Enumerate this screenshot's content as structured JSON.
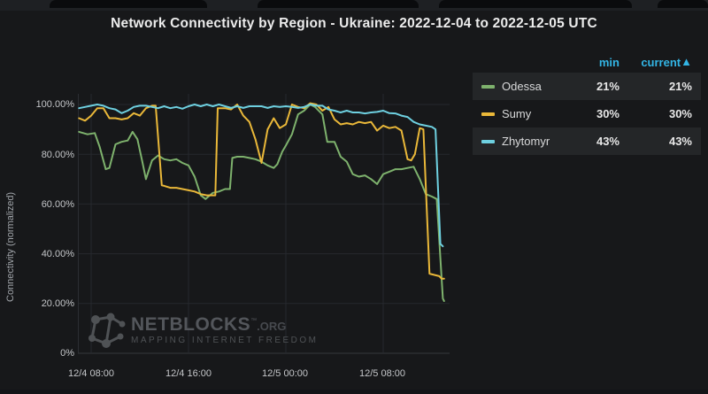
{
  "title": "Network Connectivity by Region - Ukraine: 2022-12-04 to 2022-12-05 UTC",
  "y_axis": {
    "label": "Connectivity (normalized)",
    "ticks": [
      "100.00%",
      "80.00%",
      "60.00%",
      "40.00%",
      "20.00%",
      "0%"
    ]
  },
  "x_axis": {
    "tick_labels": [
      "12/4 08:00",
      "12/4 16:00",
      "12/5 00:00",
      "12/5 08:00"
    ],
    "tick_hours": [
      1,
      9,
      17,
      25
    ]
  },
  "legend": {
    "header": {
      "min": "min",
      "current": "current",
      "sort_arrow": "▲"
    },
    "rows": [
      {
        "name": "Odessa",
        "color": "#7EB26D",
        "min": "21%",
        "current": "21%"
      },
      {
        "name": "Sumy",
        "color": "#EAB839",
        "min": "30%",
        "current": "30%"
      },
      {
        "name": "Zhytomyr",
        "color": "#6ED0E0",
        "min": "43%",
        "current": "43%"
      }
    ]
  },
  "watermark": {
    "brand": "NETBLOCKS",
    "tm": "™",
    "org": ".ORG",
    "tagline": "MAPPING INTERNET FREEDOM"
  },
  "chart_data": {
    "type": "line",
    "title": "Network Connectivity by Region - Ukraine: 2022-12-04 to 2022-12-05 UTC",
    "ylabel": "Connectivity (normalized)",
    "ylim": [
      0,
      100
    ],
    "grid": true,
    "legend_position": "right-table",
    "x_unit": "hours since 2022-12-04 07:00 UTC",
    "x_ticks": [
      {
        "label": "12/4 08:00",
        "t": 1
      },
      {
        "label": "12/4 16:00",
        "t": 9
      },
      {
        "label": "12/5 00:00",
        "t": 17
      },
      {
        "label": "12/5 08:00",
        "t": 25
      }
    ],
    "series": [
      {
        "name": "Odessa",
        "color": "#7EB26D",
        "min_pct": 21,
        "current_pct": 21,
        "points": [
          [
            0,
            89
          ],
          [
            0.7,
            88
          ],
          [
            1.3,
            88.5
          ],
          [
            1.7,
            83
          ],
          [
            2.2,
            74
          ],
          [
            2.5,
            74.5
          ],
          [
            3,
            84
          ],
          [
            3.5,
            85
          ],
          [
            4,
            85.5
          ],
          [
            4.4,
            89
          ],
          [
            4.8,
            86
          ],
          [
            5.2,
            77
          ],
          [
            5.5,
            70
          ],
          [
            6,
            77.5
          ],
          [
            6.5,
            79.5
          ],
          [
            7,
            78
          ],
          [
            7.5,
            77.5
          ],
          [
            8,
            78
          ],
          [
            8.5,
            76.5
          ],
          [
            9,
            75.5
          ],
          [
            9.5,
            71
          ],
          [
            10,
            63.5
          ],
          [
            10.4,
            62
          ],
          [
            11,
            64.5
          ],
          [
            11.5,
            65
          ],
          [
            12,
            66
          ],
          [
            12.4,
            66
          ],
          [
            12.6,
            78.5
          ],
          [
            13,
            79
          ],
          [
            13.5,
            79
          ],
          [
            14,
            78.5
          ],
          [
            14.5,
            78
          ],
          [
            15,
            77
          ],
          [
            15.5,
            75.5
          ],
          [
            16,
            74.5
          ],
          [
            16.3,
            76
          ],
          [
            16.7,
            81
          ],
          [
            17,
            83.5
          ],
          [
            17.5,
            88
          ],
          [
            18,
            96
          ],
          [
            18.5,
            97.5
          ],
          [
            19,
            100
          ],
          [
            19.4,
            99
          ],
          [
            20,
            96
          ],
          [
            20.4,
            85
          ],
          [
            21,
            85
          ],
          [
            21.5,
            79
          ],
          [
            22,
            77
          ],
          [
            22.5,
            72
          ],
          [
            23,
            71
          ],
          [
            23.5,
            71.5
          ],
          [
            24,
            70
          ],
          [
            24.5,
            68
          ],
          [
            25,
            72
          ],
          [
            25.5,
            73
          ],
          [
            26,
            74
          ],
          [
            26.5,
            74
          ],
          [
            27,
            74.5
          ],
          [
            27.5,
            75
          ],
          [
            28,
            70
          ],
          [
            28.5,
            64
          ],
          [
            29,
            63
          ],
          [
            29.4,
            62
          ],
          [
            29.9,
            22
          ],
          [
            30,
            21
          ]
        ]
      },
      {
        "name": "Sumy",
        "color": "#EAB839",
        "min_pct": 30,
        "current_pct": 30,
        "points": [
          [
            0,
            94.5
          ],
          [
            0.5,
            93.5
          ],
          [
            1,
            95.5
          ],
          [
            1.5,
            98.5
          ],
          [
            2,
            98.5
          ],
          [
            2.5,
            94.5
          ],
          [
            3,
            94.5
          ],
          [
            3.5,
            94
          ],
          [
            4,
            94.5
          ],
          [
            4.5,
            96.5
          ],
          [
            5,
            95.5
          ],
          [
            5.5,
            98.5
          ],
          [
            6,
            99.5
          ],
          [
            6.3,
            99.5
          ],
          [
            6.8,
            67.5
          ],
          [
            7,
            67.3
          ],
          [
            7.5,
            66.5
          ],
          [
            8,
            66.5
          ],
          [
            8.5,
            66
          ],
          [
            9,
            65.5
          ],
          [
            9.5,
            65
          ],
          [
            10,
            64
          ],
          [
            10.5,
            63.5
          ],
          [
            11.2,
            63.5
          ],
          [
            11.4,
            98.5
          ],
          [
            12,
            98.5
          ],
          [
            12.5,
            98
          ],
          [
            13,
            100
          ],
          [
            13.5,
            95.5
          ],
          [
            14,
            93
          ],
          [
            14.5,
            86
          ],
          [
            15,
            76.5
          ],
          [
            15.5,
            90
          ],
          [
            16,
            94.5
          ],
          [
            16.5,
            90.5
          ],
          [
            17,
            92
          ],
          [
            17.5,
            100
          ],
          [
            18,
            99
          ],
          [
            18.5,
            98.5
          ],
          [
            19,
            100.5
          ],
          [
            19.5,
            100
          ],
          [
            20,
            97.5
          ],
          [
            20.5,
            99
          ],
          [
            21,
            94
          ],
          [
            21.5,
            92
          ],
          [
            22,
            92.5
          ],
          [
            22.5,
            92
          ],
          [
            23,
            93
          ],
          [
            23.5,
            92.5
          ],
          [
            24,
            93
          ],
          [
            24.5,
            89.5
          ],
          [
            25,
            91.5
          ],
          [
            25.5,
            90.5
          ],
          [
            26,
            91
          ],
          [
            26.5,
            89.5
          ],
          [
            27,
            78
          ],
          [
            27.3,
            77.5
          ],
          [
            27.6,
            80
          ],
          [
            28,
            90.5
          ],
          [
            28.3,
            90
          ],
          [
            28.8,
            32
          ],
          [
            29.2,
            31.5
          ],
          [
            29.6,
            31
          ],
          [
            29.8,
            30
          ],
          [
            30,
            30
          ]
        ]
      },
      {
        "name": "Zhytomyr",
        "color": "#6ED0E0",
        "min_pct": 43,
        "current_pct": 43,
        "points": [
          [
            0,
            98.5
          ],
          [
            0.5,
            99
          ],
          [
            1,
            99.5
          ],
          [
            1.5,
            100
          ],
          [
            2,
            99.5
          ],
          [
            2.5,
            98.5
          ],
          [
            3,
            98
          ],
          [
            3.5,
            96.5
          ],
          [
            4,
            97.5
          ],
          [
            4.5,
            99
          ],
          [
            5,
            99.5
          ],
          [
            5.5,
            99.5
          ],
          [
            6,
            99
          ],
          [
            6.5,
            98.5
          ],
          [
            7,
            99.3
          ],
          [
            7.5,
            98.5
          ],
          [
            8,
            99
          ],
          [
            8.5,
            98.3
          ],
          [
            9,
            99.3
          ],
          [
            9.5,
            100
          ],
          [
            10,
            99.3
          ],
          [
            10.5,
            100
          ],
          [
            11,
            99.3
          ],
          [
            11.5,
            100
          ],
          [
            12,
            99.3
          ],
          [
            12.5,
            98.6
          ],
          [
            13,
            99.3
          ],
          [
            13.5,
            98.6
          ],
          [
            14,
            99.3
          ],
          [
            14.5,
            99.3
          ],
          [
            15,
            99.3
          ],
          [
            15.5,
            98.6
          ],
          [
            16,
            99.3
          ],
          [
            16.5,
            99
          ],
          [
            17,
            99.3
          ],
          [
            17.5,
            99
          ],
          [
            18,
            98.6
          ],
          [
            18.5,
            99
          ],
          [
            19,
            100
          ],
          [
            19.5,
            99.5
          ],
          [
            20,
            99.5
          ],
          [
            20.5,
            98
          ],
          [
            21,
            97.5
          ],
          [
            21.5,
            96.8
          ],
          [
            22,
            97.5
          ],
          [
            22.5,
            96.8
          ],
          [
            23,
            96.8
          ],
          [
            23.5,
            96.4
          ],
          [
            24,
            96.8
          ],
          [
            24.5,
            97
          ],
          [
            25,
            97.5
          ],
          [
            25.5,
            96.5
          ],
          [
            26,
            96.4
          ],
          [
            26.5,
            95.5
          ],
          [
            27,
            95
          ],
          [
            27.5,
            93
          ],
          [
            28,
            92
          ],
          [
            28.5,
            91.5
          ],
          [
            29,
            91
          ],
          [
            29.3,
            90
          ],
          [
            29.7,
            44
          ],
          [
            29.9,
            43
          ]
        ]
      }
    ]
  }
}
